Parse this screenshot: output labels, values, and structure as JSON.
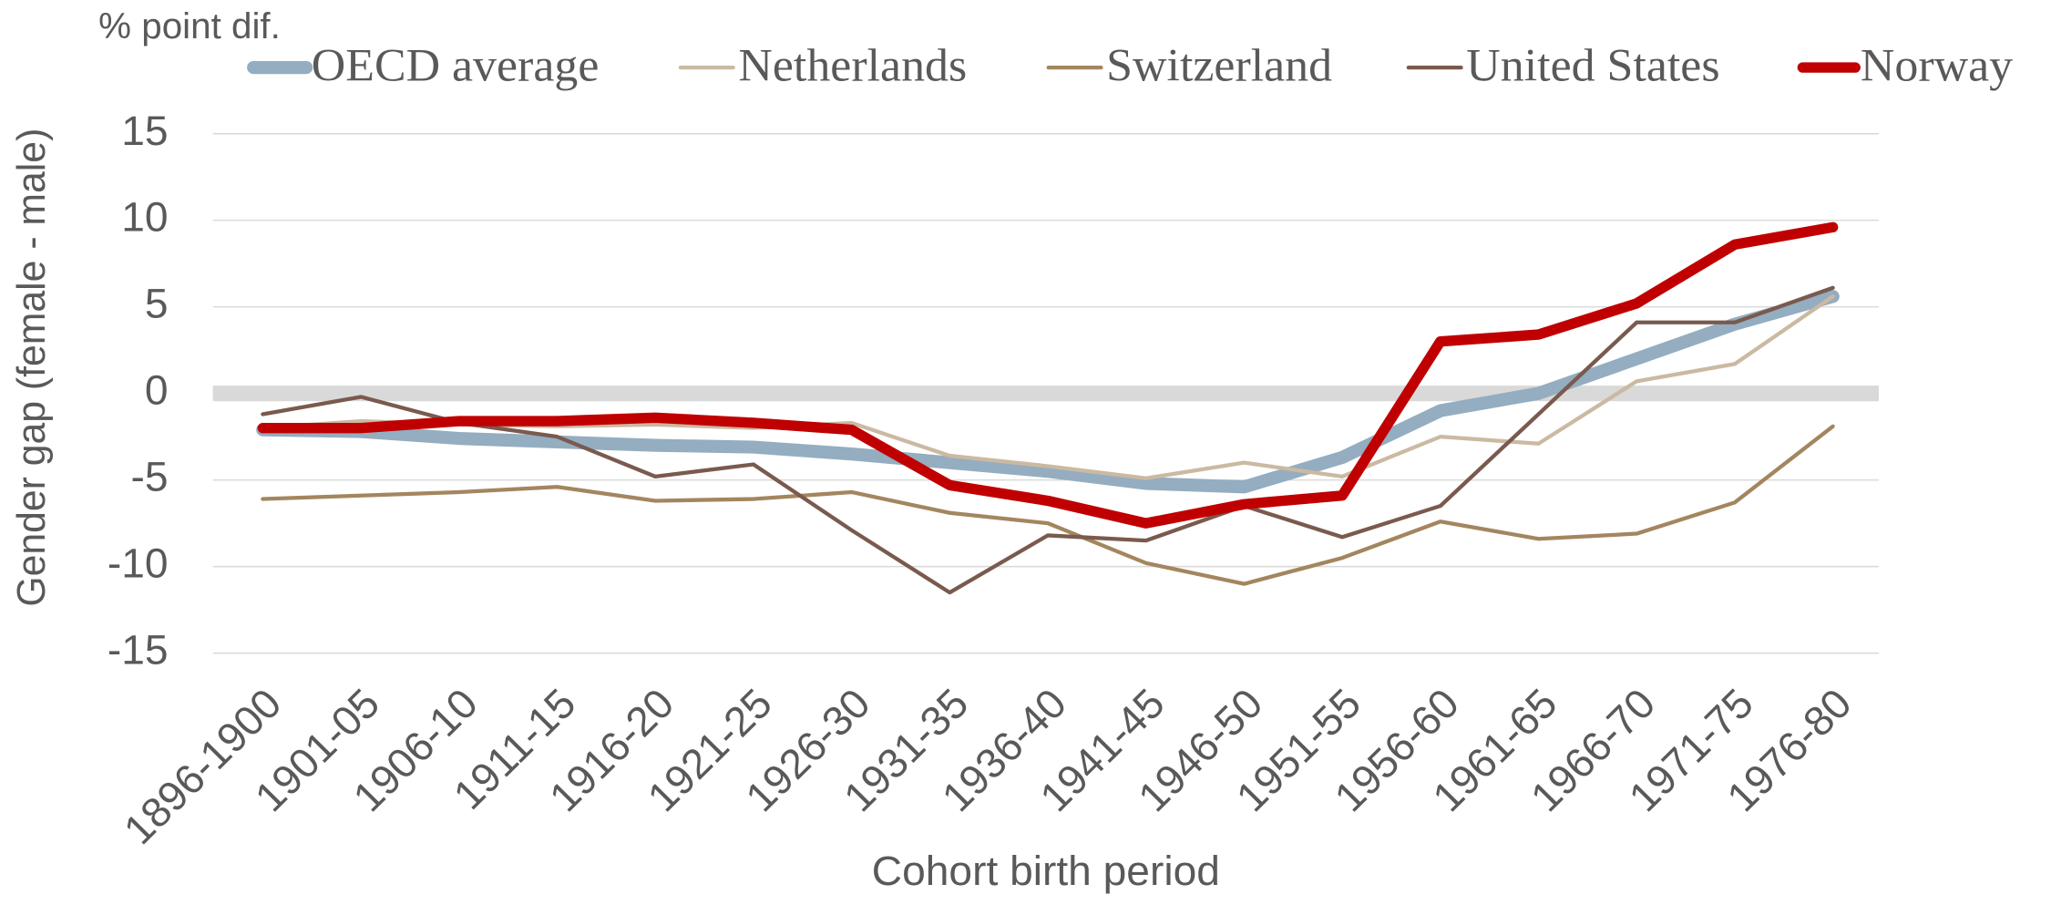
{
  "chart_data": {
    "type": "line",
    "title": "% point dif.",
    "ylabel": "Gender gap (female - male)",
    "xlabel": "Cohort birth period",
    "categories": [
      "1896-1900",
      "1901-05",
      "1906-10",
      "1911-15",
      "1916-20",
      "1921-25",
      "1926-30",
      "1931-35",
      "1936-40",
      "1941-45",
      "1946-50",
      "1951-55",
      "1956-60",
      "1961-65",
      "1966-70",
      "1971-75",
      "1976-80"
    ],
    "series": [
      {
        "name": "OECD average",
        "color": "#94adc0",
        "line_width": 10,
        "values": [
          -2.1,
          -2.2,
          -2.6,
          -2.8,
          -3.0,
          -3.1,
          -3.5,
          -4.0,
          -4.5,
          -5.2,
          -5.4,
          -3.7,
          -1.0,
          0,
          2.0,
          4.0,
          5.6
        ]
      },
      {
        "name": "Netherlands",
        "color": "#cbb9a2",
        "line_width": 3,
        "values": [
          -2.0,
          -1.6,
          -1.8,
          -1.9,
          -1.8,
          -2.0,
          -1.7,
          -3.6,
          -4.2,
          -4.9,
          -4.0,
          -4.8,
          -2.5,
          -2.9,
          0.7,
          1.7,
          5.6
        ]
      },
      {
        "name": "Switzerland",
        "color": "#a3865f",
        "line_width": 3,
        "values": [
          -6.1,
          -5.9,
          -5.7,
          -5.4,
          -6.2,
          -6.1,
          -5.7,
          -6.9,
          -7.5,
          -9.8,
          -11.0,
          -9.5,
          -7.4,
          -8.4,
          -8.1,
          -6.3,
          -1.9
        ]
      },
      {
        "name": "United States",
        "color": "#7a5a4e",
        "line_width": 3,
        "values": [
          -1.2,
          -0.2,
          -1.7,
          -2.5,
          -4.8,
          -4.1,
          -7.9,
          -11.5,
          -8.2,
          -8.5,
          -6.5,
          -8.3,
          -6.5,
          -1.2,
          4.1,
          4.1,
          6.1
        ]
      },
      {
        "name": "Norway",
        "color": "#c00000",
        "line_width": 8,
        "values": [
          -2.0,
          -2.0,
          -1.6,
          -1.6,
          -1.4,
          -1.7,
          -2.1,
          -5.3,
          -6.2,
          -7.5,
          -6.4,
          -5.9,
          3.0,
          3.4,
          5.2,
          8.6,
          9.6
        ]
      }
    ],
    "ylim": [
      -15,
      15
    ],
    "yticks": [
      15,
      10,
      5,
      0,
      -5,
      -10,
      -15
    ],
    "grid": true,
    "legend": "top"
  }
}
